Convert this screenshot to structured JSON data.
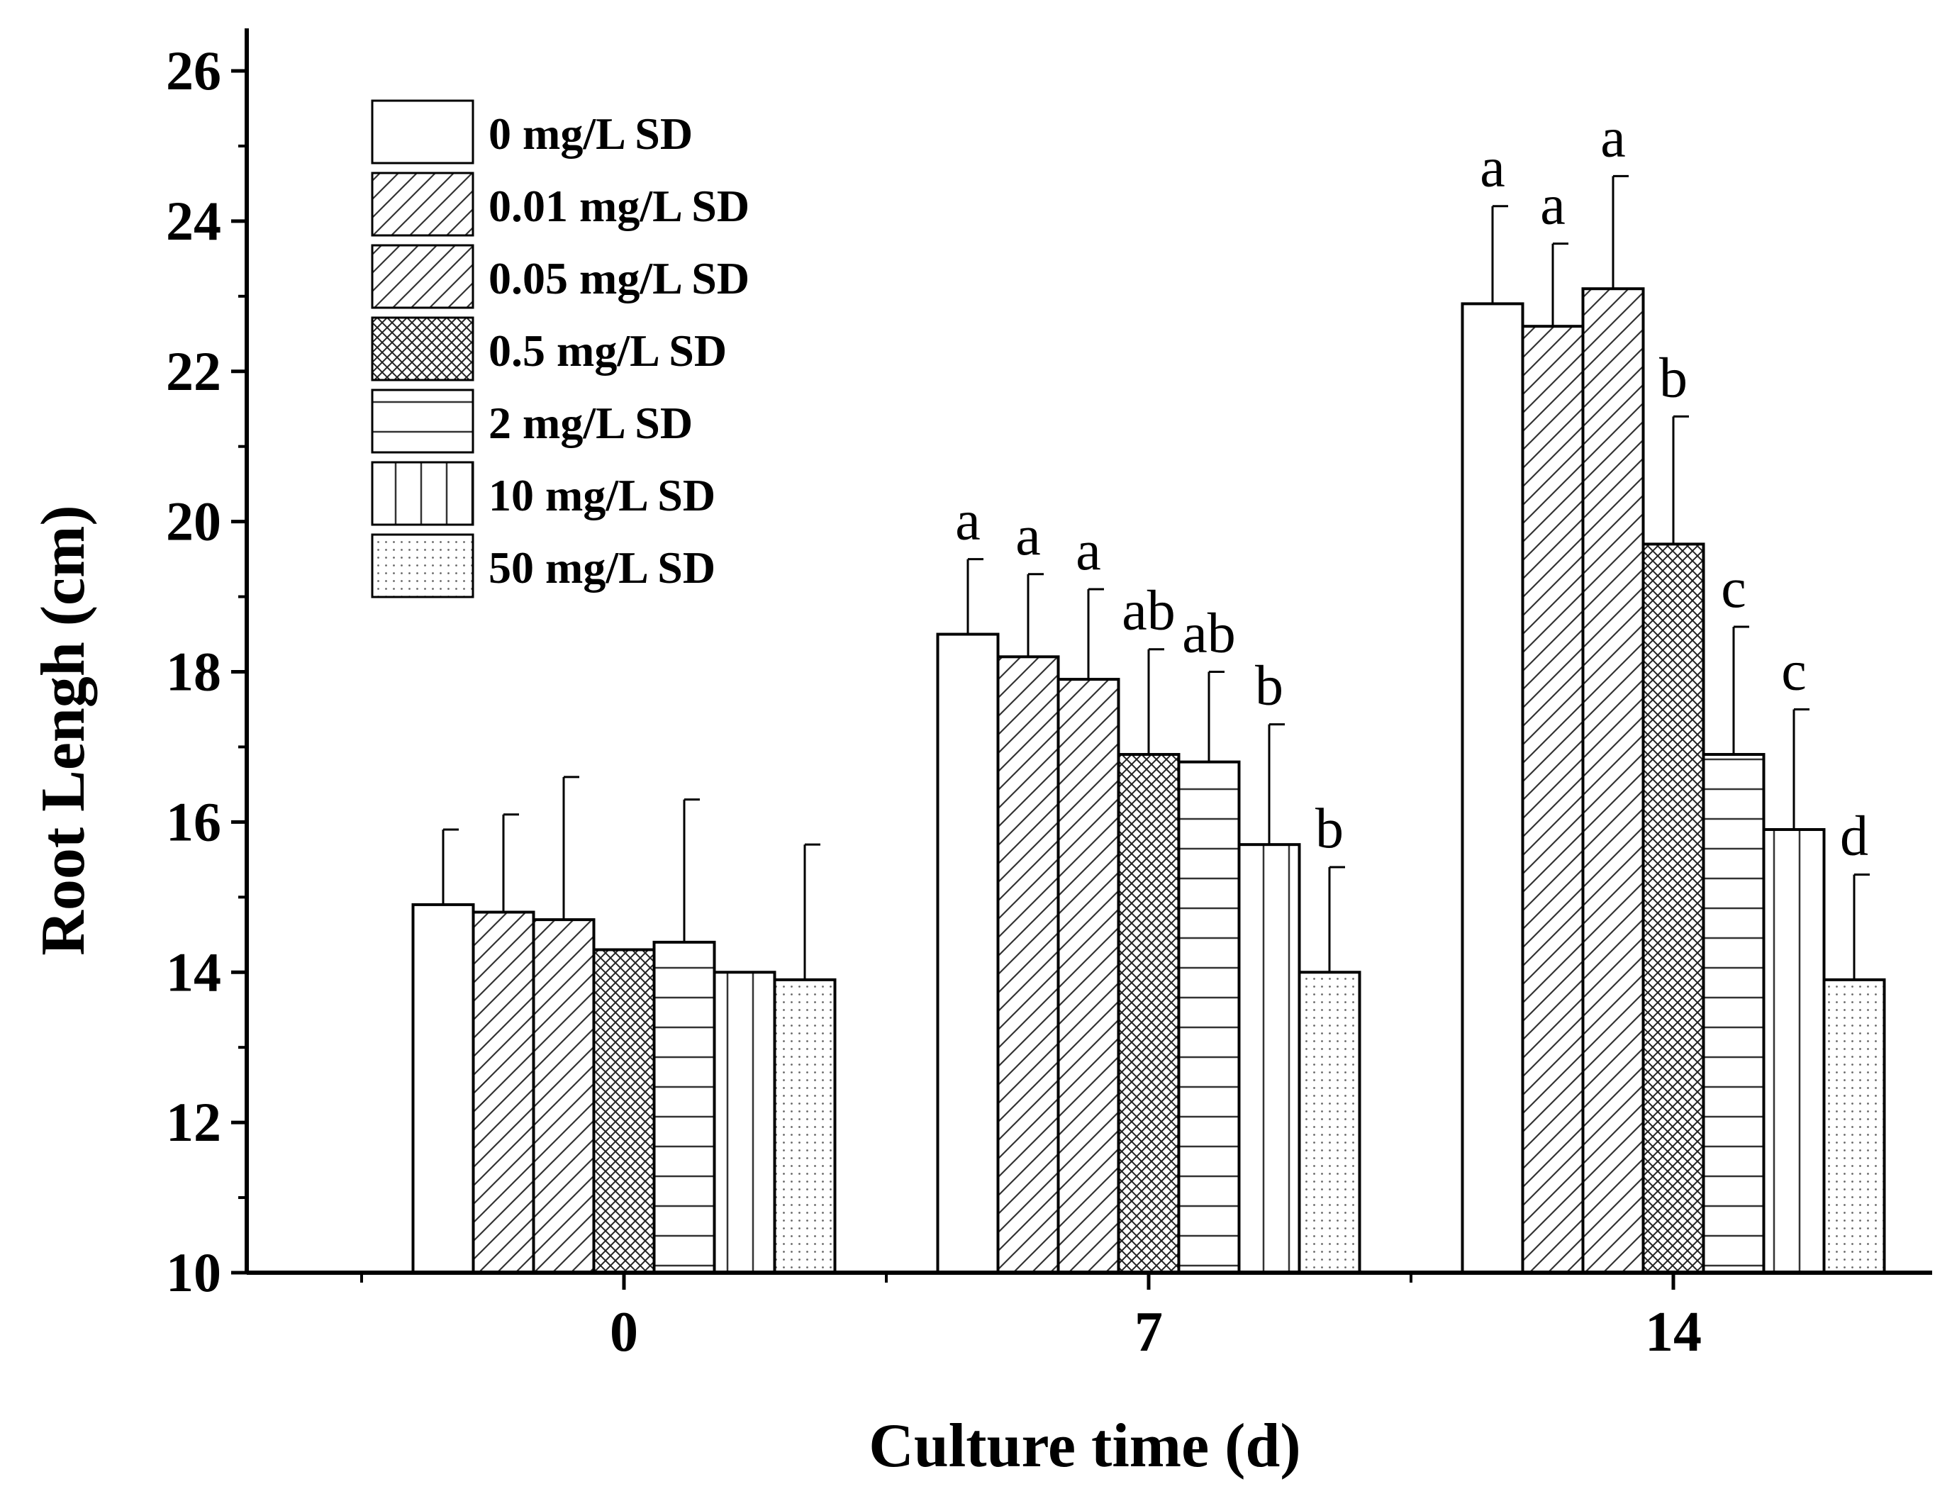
{
  "chart_data": {
    "type": "bar",
    "title": "",
    "xlabel": "Culture time (d)",
    "ylabel": "Root Lengh (cm)",
    "ylim": [
      10,
      26
    ],
    "yticks": [
      "10",
      "12",
      "14",
      "16",
      "18",
      "20",
      "22",
      "24",
      "26"
    ],
    "categories": [
      "0",
      "7",
      "14"
    ],
    "legend_position": "top-left",
    "series": [
      {
        "name": "0 mg/L SD",
        "pattern": "none",
        "values": [
          14.9,
          18.5,
          22.9
        ],
        "errors": [
          1.0,
          1.0,
          1.3
        ],
        "letters": [
          "",
          "a",
          "a"
        ]
      },
      {
        "name": "0.01 mg/L SD",
        "pattern": "diagonal",
        "values": [
          14.8,
          18.2,
          22.6
        ],
        "errors": [
          1.3,
          1.1,
          1.1
        ],
        "letters": [
          "",
          "a",
          "a"
        ]
      },
      {
        "name": "0.05 mg/L SD",
        "pattern": "diagonal",
        "values": [
          14.7,
          17.9,
          23.1
        ],
        "errors": [
          1.9,
          1.2,
          1.5
        ],
        "letters": [
          "",
          "a",
          "a"
        ]
      },
      {
        "name": "0.5 mg/L SD",
        "pattern": "crosshatch",
        "values": [
          14.3,
          16.9,
          19.7
        ],
        "errors": [
          0.0,
          1.4,
          1.7
        ],
        "letters": [
          "",
          "ab",
          "b"
        ]
      },
      {
        "name": "2 mg/L SD",
        "pattern": "horizontal",
        "values": [
          14.4,
          16.8,
          16.9
        ],
        "errors": [
          1.9,
          1.2,
          1.7
        ],
        "letters": [
          "",
          "ab",
          "c"
        ]
      },
      {
        "name": "10 mg/L SD",
        "pattern": "vertical",
        "values": [
          14.0,
          15.7,
          15.9
        ],
        "errors": [
          0.0,
          1.6,
          1.6
        ],
        "letters": [
          "",
          "b",
          "c"
        ]
      },
      {
        "name": "50 mg/L SD",
        "pattern": "dots",
        "values": [
          13.9,
          14.0,
          13.9
        ],
        "errors": [
          1.8,
          1.4,
          1.4
        ],
        "letters": [
          "",
          "b",
          "d"
        ]
      }
    ]
  }
}
